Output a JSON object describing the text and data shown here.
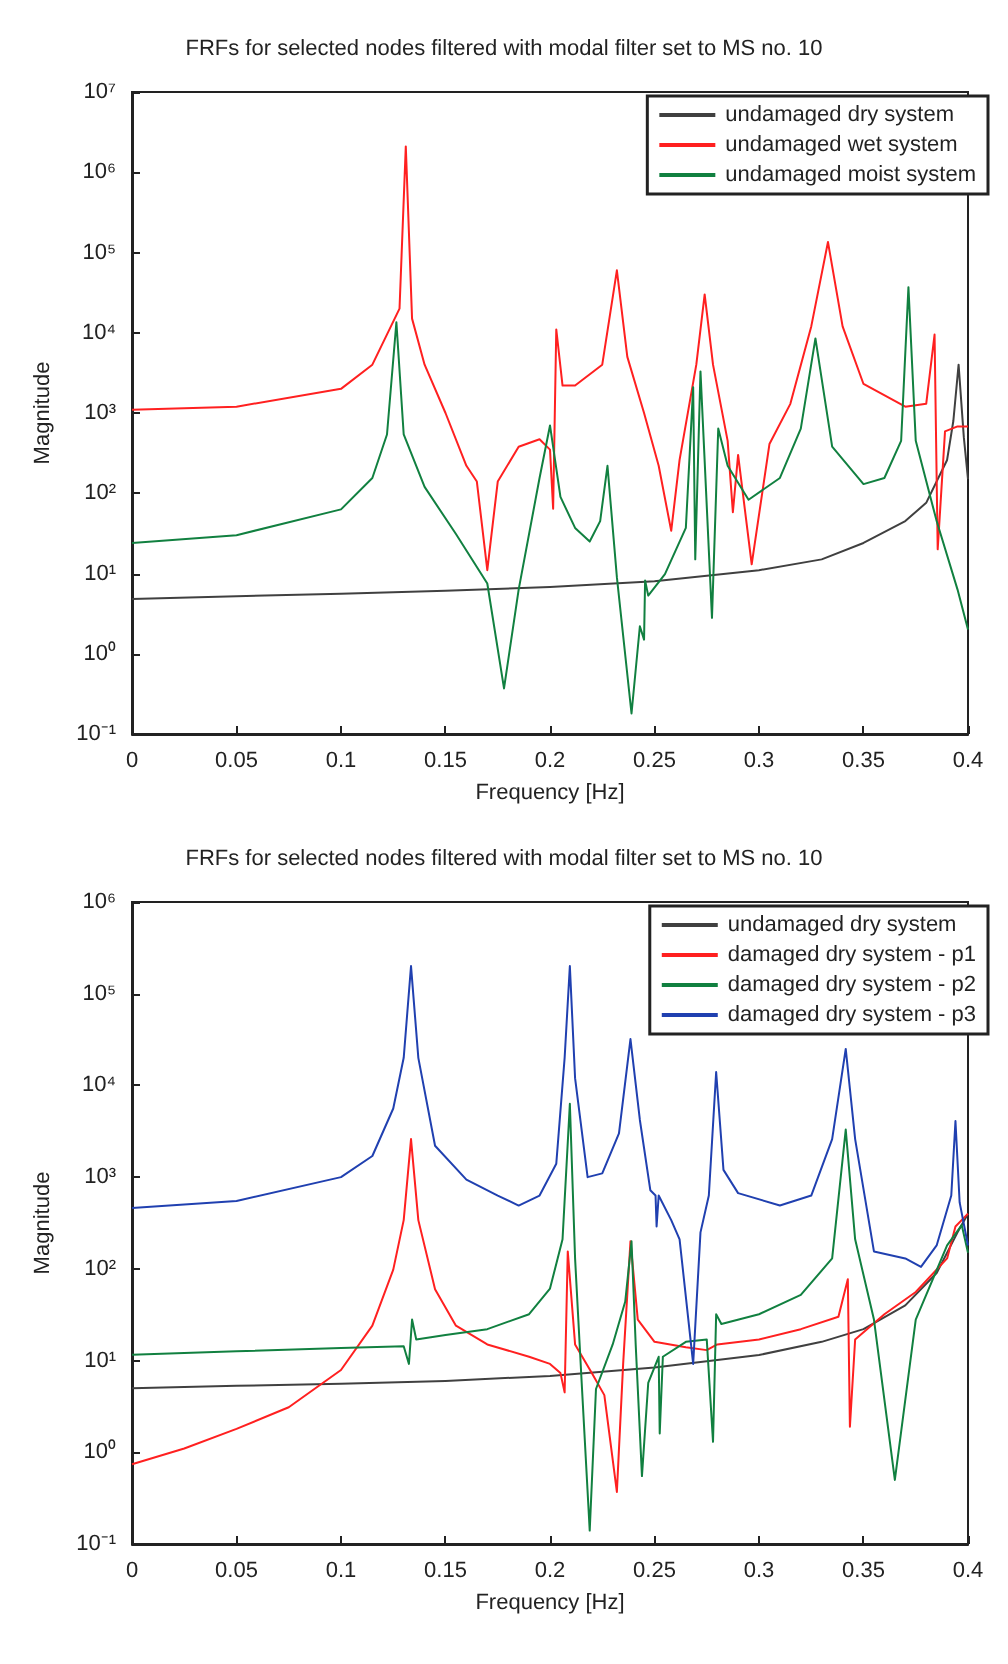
{
  "chart_data": [
    {
      "type": "line",
      "title": "FRFs for selected nodes filtered with modal filter set to MS no. 10",
      "xlabel": "Frequency [Hz]",
      "ylabel": "Magnitude",
      "log": "y",
      "grid": false,
      "legend": "top right",
      "marker": "none",
      "line_style": "solid",
      "xlim": [
        0,
        0.4
      ],
      "xticks": [
        0,
        0.05,
        0.1,
        0.15,
        0.2,
        0.25,
        0.3,
        0.35,
        0.4
      ],
      "ylim": [
        0.1,
        10000000
      ],
      "yticks": [
        {
          "value": 0.1,
          "label": "10⁻¹"
        },
        {
          "value": 1,
          "label": "10⁰"
        },
        {
          "value": 10,
          "label": "10¹"
        },
        {
          "value": 100,
          "label": "10²"
        },
        {
          "value": 1000,
          "label": "10³"
        },
        {
          "value": 10000,
          "label": "10⁴"
        },
        {
          "value": 100000,
          "label": "10⁵"
        },
        {
          "value": 1000000,
          "label": "10⁶"
        },
        {
          "value": 10000000,
          "label": "10⁷"
        }
      ],
      "series": [
        {
          "name": "undamaged dry system",
          "color": "#404040",
          "x": [
            0,
            0.05,
            0.1,
            0.15,
            0.2,
            0.25,
            0.3,
            0.33,
            0.35,
            0.37,
            0.38,
            0.39,
            0.393,
            0.3955,
            0.398,
            0.4
          ],
          "values": [
            4.8,
            5.2,
            5.6,
            6.1,
            6.8,
            8,
            11,
            15,
            24,
            45,
            76,
            260,
            800,
            4000,
            500,
            150
          ]
        },
        {
          "name": "undamaged wet system",
          "color": "#ff2020",
          "x": [
            0,
            0.05,
            0.1,
            0.115,
            0.128,
            0.131,
            0.134,
            0.14,
            0.15,
            0.16,
            0.165,
            0.17,
            0.175,
            0.185,
            0.195,
            0.2,
            0.2015,
            0.203,
            0.206,
            0.212,
            0.225,
            0.232,
            0.237,
            0.245,
            0.252,
            0.258,
            0.262,
            0.27,
            0.274,
            0.278,
            0.285,
            0.2875,
            0.29,
            0.2965,
            0.305,
            0.315,
            0.325,
            0.333,
            0.34,
            0.35,
            0.37,
            0.38,
            0.384,
            0.3855,
            0.389,
            0.395,
            0.4
          ],
          "values": [
            1100,
            1200,
            2000,
            4000,
            20000,
            2100000,
            15000,
            4000,
            1000,
            220,
            140,
            11,
            140,
            380,
            470,
            350,
            64,
            11000,
            2200,
            2200,
            4000,
            60000,
            5000,
            1000,
            220,
            34,
            260,
            4000,
            30000,
            4000,
            450,
            58,
            300,
            13,
            410,
            1300,
            12000,
            135000,
            12000,
            2300,
            1200,
            1300,
            9500,
            20,
            590,
            680,
            680
          ]
        },
        {
          "name": "undamaged moist system",
          "color": "#118040",
          "x": [
            0,
            0.05,
            0.1,
            0.115,
            0.122,
            0.1265,
            0.13,
            0.14,
            0.155,
            0.17,
            0.178,
            0.185,
            0.195,
            0.2,
            0.205,
            0.212,
            0.219,
            0.224,
            0.2275,
            0.232,
            0.239,
            0.243,
            0.245,
            0.2455,
            0.247,
            0.255,
            0.265,
            0.2685,
            0.2695,
            0.272,
            0.2775,
            0.2805,
            0.285,
            0.295,
            0.31,
            0.32,
            0.327,
            0.335,
            0.35,
            0.36,
            0.368,
            0.3715,
            0.375,
            0.385,
            0.395,
            0.4
          ],
          "values": [
            24,
            30,
            63,
            155,
            540,
            13500,
            540,
            120,
            31,
            7.5,
            0.37,
            6.3,
            155,
            700,
            90,
            37,
            25,
            45,
            220,
            9,
            0.18,
            2.2,
            1.5,
            8.2,
            5.3,
            9.8,
            37,
            2100,
            15,
            3300,
            2.8,
            640,
            220,
            83,
            155,
            640,
            8500,
            380,
            130,
            155,
            450,
            37000,
            450,
            45,
            6.3,
            2
          ]
        }
      ]
    },
    {
      "type": "line",
      "title": "FRFs for selected nodes filtered with modal filter set to MS no. 10",
      "xlabel": "Frequency [Hz]",
      "ylabel": "Magnitude",
      "log": "y",
      "grid": false,
      "legend": "top right",
      "marker": "none",
      "line_style": "solid",
      "xlim": [
        0,
        0.4
      ],
      "xticks": [
        0,
        0.05,
        0.1,
        0.15,
        0.2,
        0.25,
        0.3,
        0.35,
        0.4
      ],
      "ylim": [
        0.1,
        1000000
      ],
      "yticks": [
        {
          "value": 0.1,
          "label": "10⁻¹"
        },
        {
          "value": 1,
          "label": "10⁰"
        },
        {
          "value": 10,
          "label": "10¹"
        },
        {
          "value": 100,
          "label": "10²"
        },
        {
          "value": 1000,
          "label": "10³"
        },
        {
          "value": 10000,
          "label": "10⁴"
        },
        {
          "value": 100000,
          "label": "10⁵"
        },
        {
          "value": 1000000,
          "label": "10⁶"
        }
      ],
      "series": [
        {
          "name": "undamaged dry system",
          "color": "#404040",
          "x": [
            0,
            0.05,
            0.1,
            0.15,
            0.2,
            0.25,
            0.3,
            0.33,
            0.35,
            0.37,
            0.385,
            0.395,
            0.4
          ],
          "values": [
            5,
            5.3,
            5.6,
            6,
            6.8,
            8.4,
            11.5,
            16,
            22,
            40,
            90,
            250,
            400
          ]
        },
        {
          "name": "damaged dry system - p1",
          "color": "#ff2020",
          "x": [
            0,
            0.025,
            0.05,
            0.075,
            0.1,
            0.115,
            0.125,
            0.13,
            0.1335,
            0.137,
            0.145,
            0.155,
            0.17,
            0.19,
            0.2,
            0.205,
            0.207,
            0.2085,
            0.212,
            0.22,
            0.226,
            0.232,
            0.235,
            0.2385,
            0.242,
            0.25,
            0.265,
            0.275,
            0.28,
            0.3,
            0.32,
            0.338,
            0.3425,
            0.3435,
            0.346,
            0.36,
            0.375,
            0.39,
            0.394,
            0.4
          ],
          "values": [
            0.74,
            1.1,
            1.8,
            3.1,
            7.9,
            24,
            98,
            340,
            2600,
            340,
            60,
            24,
            15,
            11,
            9.2,
            7.3,
            4.5,
            155,
            15,
            7.3,
            4.2,
            0.37,
            9.2,
            200,
            28,
            16,
            14,
            13,
            15,
            17,
            22,
            30,
            77,
            1.9,
            17,
            32,
            56,
            130,
            290,
            400
          ]
        },
        {
          "name": "damaged dry system - p2",
          "color": "#118040",
          "x": [
            0,
            0.05,
            0.1,
            0.13,
            0.1325,
            0.134,
            0.136,
            0.15,
            0.17,
            0.19,
            0.2,
            0.206,
            0.2095,
            0.212,
            0.215,
            0.219,
            0.222,
            0.23,
            0.236,
            0.239,
            0.241,
            0.244,
            0.247,
            0.252,
            0.2525,
            0.254,
            0.265,
            0.275,
            0.278,
            0.2795,
            0.282,
            0.3,
            0.32,
            0.335,
            0.3415,
            0.346,
            0.355,
            0.365,
            0.375,
            0.39,
            0.397,
            0.4
          ],
          "values": [
            11.6,
            12.6,
            13.7,
            14.3,
            9.2,
            28,
            17,
            19,
            22,
            32,
            61,
            210,
            6300,
            130,
            6.7,
            0.14,
            4.9,
            15,
            44,
            200,
            15,
            0.55,
            5.7,
            11,
            1.6,
            11,
            16,
            17,
            1.3,
            32,
            25,
            32,
            52,
            130,
            3300,
            210,
            28,
            0.5,
            28,
            180,
            300,
            150
          ]
        },
        {
          "name": "damaged dry system - p3",
          "color": "#2040b0",
          "x": [
            0,
            0.05,
            0.1,
            0.115,
            0.125,
            0.13,
            0.1335,
            0.137,
            0.145,
            0.16,
            0.175,
            0.185,
            0.195,
            0.203,
            0.207,
            0.2095,
            0.212,
            0.218,
            0.225,
            0.233,
            0.2385,
            0.243,
            0.248,
            0.2505,
            0.251,
            0.252,
            0.258,
            0.262,
            0.2685,
            0.272,
            0.276,
            0.2795,
            0.283,
            0.29,
            0.31,
            0.325,
            0.335,
            0.3415,
            0.346,
            0.355,
            0.37,
            0.3775,
            0.385,
            0.392,
            0.394,
            0.396,
            0.4
          ],
          "values": [
            460,
            550,
            1000,
            1700,
            5600,
            20000,
            200000,
            20000,
            2200,
            940,
            630,
            490,
            630,
            1400,
            20000,
            200000,
            12000,
            1000,
            1100,
            3000,
            32000,
            4200,
            720,
            630,
            290,
            630,
            340,
            210,
            9.2,
            250,
            630,
            14000,
            1200,
            670,
            490,
            630,
            2600,
            25000,
            2600,
            155,
            130,
            105,
            180,
            630,
            4100,
            530,
            180
          ]
        }
      ]
    }
  ]
}
